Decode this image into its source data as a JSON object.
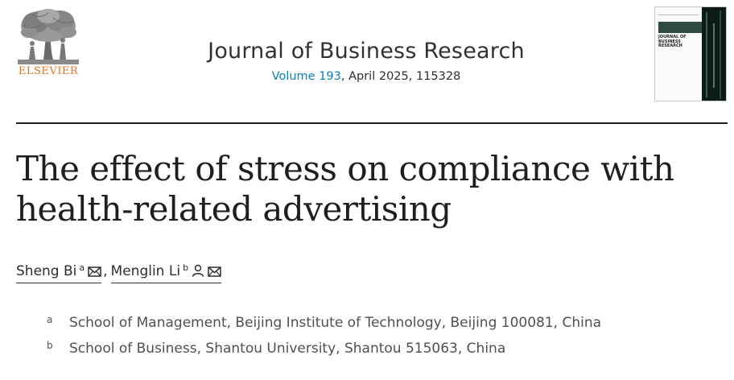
{
  "publisher": {
    "name": "ELSEVIER",
    "logo_icon": "elsevier-tree-logo",
    "color": "#e9711c"
  },
  "journal": {
    "title": "Journal of Business Research",
    "volume_link": "Volume 193",
    "issue_rest": ", April 2025, 115328",
    "cover_title": "JOURNAL OF BUSINESS RESEARCH",
    "link_color": "#0c7dbb"
  },
  "article": {
    "title_line1": "The effect of stress on compliance with",
    "title_line2": "health-related advertising"
  },
  "authors": [
    {
      "name": "Sheng Bi",
      "affiliation": "a",
      "icons": [
        "mail-icon"
      ]
    },
    {
      "name": "Menglin Li",
      "affiliation": "b",
      "icons": [
        "person-icon",
        "mail-icon"
      ]
    }
  ],
  "author_separator": ",",
  "affiliations": [
    {
      "label": "a",
      "text": "School of Management, Beijing Institute of Technology, Beijing 100081, China"
    },
    {
      "label": "b",
      "text": "School of Business, Shantou University, Shantou 515063, China"
    }
  ]
}
